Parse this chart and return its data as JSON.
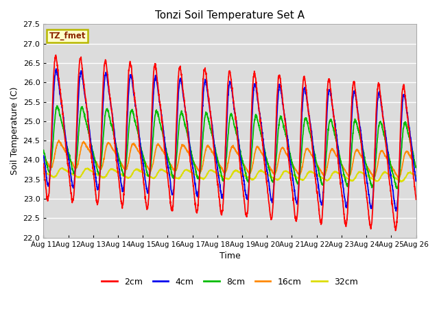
{
  "title": "Tonzi Soil Temperature Set A",
  "xlabel": "Time",
  "ylabel": "Soil Temperature (C)",
  "ylim": [
    22.0,
    27.5
  ],
  "yticks": [
    22.0,
    22.5,
    23.0,
    23.5,
    24.0,
    24.5,
    25.0,
    25.5,
    26.0,
    26.5,
    27.0,
    27.5
  ],
  "xtick_labels": [
    "Aug 11",
    "Aug 12",
    "Aug 13",
    "Aug 14",
    "Aug 15",
    "Aug 16",
    "Aug 17",
    "Aug 18",
    "Aug 19",
    "Aug 20",
    "Aug 21",
    "Aug 22",
    "Aug 23",
    "Aug 24",
    "Aug 25",
    "Aug 26"
  ],
  "annotation_text": "TZ_fmet",
  "annotation_color": "#8B2500",
  "annotation_bg": "#FFFFCC",
  "annotation_border": "#B8B800",
  "colors": {
    "2cm": "#FF0000",
    "4cm": "#0000EE",
    "8cm": "#00BB00",
    "16cm": "#FF8800",
    "32cm": "#DDDD00"
  },
  "bg_color": "#DCDCDC",
  "grid_color": "#FFFFFF",
  "linewidth": 1.3
}
